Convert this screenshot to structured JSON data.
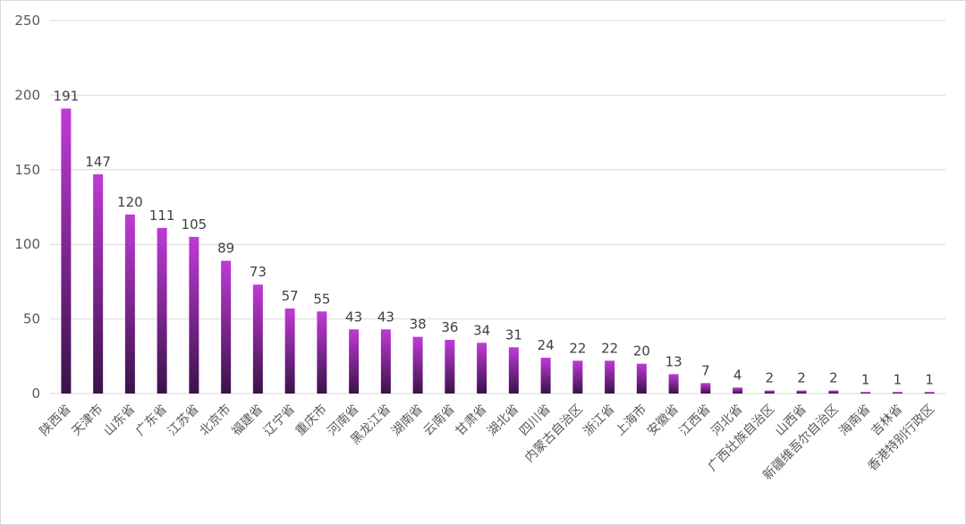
{
  "chart_data": {
    "type": "bar",
    "title": "",
    "xlabel": "",
    "ylabel": "",
    "ylim": [
      0,
      250
    ],
    "yticks": [
      0,
      50,
      100,
      150,
      200,
      250
    ],
    "grid": true,
    "legend": "none",
    "colors": {
      "bar_top": "#c03ad8",
      "bar_bottom": "#3a1248",
      "grid": "#d9d9d9"
    },
    "categories": [
      "陕西省",
      "天津市",
      "山东省",
      "广东省",
      "江苏省",
      "北京市",
      "福建省",
      "辽宁省",
      "重庆市",
      "河南省",
      "黑龙江省",
      "湖南省",
      "云南省",
      "甘肃省",
      "湖北省",
      "四川省",
      "内蒙古自治区",
      "浙江省",
      "上海市",
      "安徽省",
      "江西省",
      "河北省",
      "广西壮族自治区",
      "山西省",
      "新疆维吾尔自治区",
      "海南省",
      "吉林省",
      "香港特别行政区"
    ],
    "values": [
      191,
      147,
      120,
      111,
      105,
      89,
      73,
      57,
      55,
      43,
      43,
      38,
      36,
      34,
      31,
      24,
      22,
      22,
      20,
      13,
      7,
      4,
      2,
      2,
      2,
      1,
      1,
      1
    ]
  }
}
